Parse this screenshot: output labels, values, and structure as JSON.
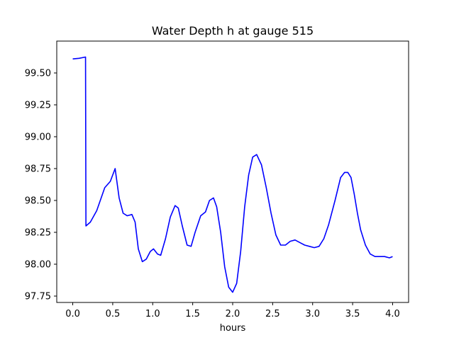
{
  "chart_data": {
    "type": "line",
    "title": "Water Depth h at gauge 515",
    "xlabel": "hours",
    "ylabel": "",
    "xlim": [
      -0.2,
      4.2
    ],
    "ylim": [
      97.7,
      99.75
    ],
    "grid": false,
    "xticks": [
      0.0,
      0.5,
      1.0,
      1.5,
      2.0,
      2.5,
      3.0,
      3.5,
      4.0
    ],
    "xtick_labels": [
      "0.0",
      "0.5",
      "1.0",
      "1.5",
      "2.0",
      "2.5",
      "3.0",
      "3.5",
      "4.0"
    ],
    "yticks": [
      97.75,
      98.0,
      98.25,
      98.5,
      98.75,
      99.0,
      99.25,
      99.5
    ],
    "ytick_labels": [
      "97.75",
      "98.00",
      "98.25",
      "98.50",
      "98.75",
      "99.00",
      "99.25",
      "99.50"
    ],
    "series": [
      {
        "color": "#0000ff",
        "x": [
          0.0,
          0.08,
          0.16,
          0.165,
          0.22,
          0.3,
          0.4,
          0.47,
          0.53,
          0.58,
          0.63,
          0.68,
          0.74,
          0.78,
          0.82,
          0.87,
          0.92,
          0.97,
          1.01,
          1.06,
          1.1,
          1.16,
          1.22,
          1.28,
          1.32,
          1.37,
          1.43,
          1.48,
          1.53,
          1.6,
          1.66,
          1.71,
          1.76,
          1.8,
          1.85,
          1.9,
          1.95,
          2.0,
          2.05,
          2.1,
          2.15,
          2.2,
          2.25,
          2.3,
          2.36,
          2.42,
          2.48,
          2.54,
          2.6,
          2.66,
          2.72,
          2.78,
          2.84,
          2.9,
          2.96,
          3.02,
          3.08,
          3.14,
          3.2,
          3.28,
          3.35,
          3.4,
          3.44,
          3.48,
          3.52,
          3.56,
          3.6,
          3.66,
          3.72,
          3.78,
          3.84,
          3.9,
          3.96,
          4.0
        ],
        "y": [
          99.61,
          99.615,
          99.625,
          98.3,
          98.33,
          98.42,
          98.6,
          98.65,
          98.75,
          98.52,
          98.4,
          98.38,
          98.39,
          98.33,
          98.12,
          98.02,
          98.04,
          98.1,
          98.12,
          98.08,
          98.07,
          98.2,
          98.37,
          98.46,
          98.44,
          98.3,
          98.15,
          98.14,
          98.25,
          98.38,
          98.41,
          98.5,
          98.52,
          98.45,
          98.25,
          97.98,
          97.82,
          97.78,
          97.85,
          98.1,
          98.45,
          98.7,
          98.84,
          98.86,
          98.78,
          98.6,
          98.4,
          98.23,
          98.15,
          98.15,
          98.18,
          98.19,
          98.17,
          98.15,
          98.14,
          98.13,
          98.14,
          98.2,
          98.31,
          98.5,
          98.68,
          98.72,
          98.72,
          98.68,
          98.55,
          98.4,
          98.27,
          98.15,
          98.08,
          98.06,
          98.06,
          98.06,
          98.05,
          98.06
        ]
      }
    ]
  }
}
